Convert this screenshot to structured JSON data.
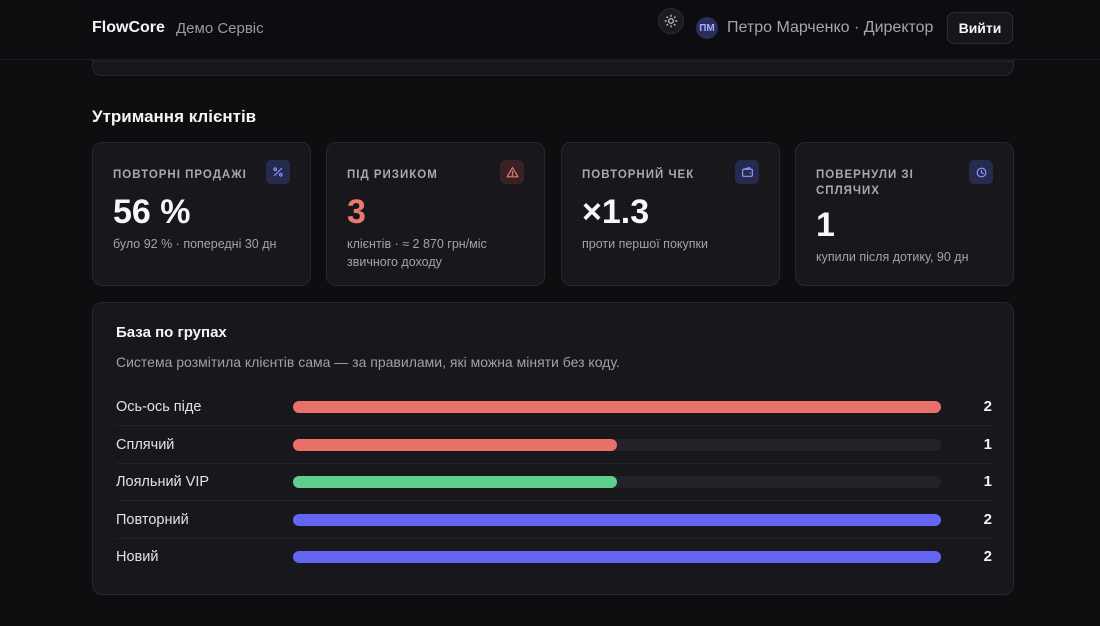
{
  "header": {
    "brand": "FlowCore",
    "subbrand": "Демо Сервіс",
    "avatar_initials": "ПМ",
    "user_label": "Петро Марченко · Директор",
    "logout_label": "Вийти"
  },
  "retention": {
    "title": "Утримання клієнтів",
    "cards": [
      {
        "label": "ПОВТОРНІ ПРОДАЖІ",
        "value": "56 %",
        "sub": "було 92 % · попередні 30 дн",
        "icon": "percent-icon"
      },
      {
        "label": "ПІД РИЗИКОМ",
        "value": "3",
        "sub": "клієнтів · ≈ 2 870 грн/міс звичного доходу",
        "icon": "warning-icon"
      },
      {
        "label": "ПОВТОРНИЙ ЧЕК",
        "value": "×1.3",
        "sub": "проти першої покупки",
        "icon": "wallet-icon"
      },
      {
        "label": "ПОВЕРНУЛИ ЗІ СПЛЯЧИХ",
        "value": "1",
        "sub": "купили після дотику, 90 дн",
        "icon": "clock-icon"
      }
    ]
  },
  "groups": {
    "title": "База по групах",
    "description": "Система розмітила клієнтів сама — за правилами, які можна міняти без коду.",
    "max": 2,
    "rows": [
      {
        "label": "Ось-ось піде",
        "count": "2",
        "value": 2,
        "color": "#ea7169"
      },
      {
        "label": "Сплячий",
        "count": "1",
        "value": 1,
        "color": "#ea7169"
      },
      {
        "label": "Лояльний VIP",
        "count": "1",
        "value": 1,
        "color": "#5fcf8e"
      },
      {
        "label": "Повторний",
        "count": "2",
        "value": 2,
        "color": "#6366f1"
      },
      {
        "label": "Новий",
        "count": "2",
        "value": 2,
        "color": "#6366f1"
      }
    ]
  },
  "colors": {
    "accent": "#6366f1",
    "danger": "#ec7a70",
    "success": "#5fcf8e"
  }
}
